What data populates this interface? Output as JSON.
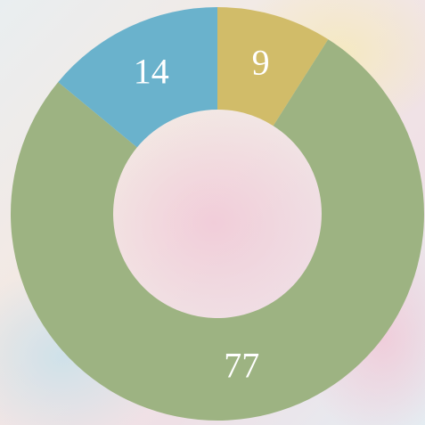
{
  "chart_data": {
    "type": "donut",
    "values": [
      9,
      77,
      14
    ],
    "colors": [
      "#d1bc69",
      "#9db382",
      "#6ab2cc"
    ]
  }
}
